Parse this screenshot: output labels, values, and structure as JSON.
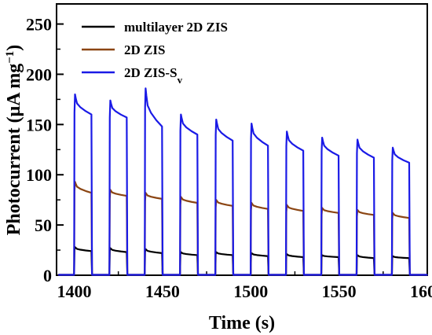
{
  "chart_data": {
    "type": "line",
    "xlabel": "Time (s)",
    "ylabel": {
      "main": "Photocurrent (μA mg",
      "sup": "−1",
      "close": ")"
    },
    "xlim": [
      1390,
      1600
    ],
    "ylim": [
      0,
      270
    ],
    "x_ticks": [
      1400,
      1450,
      1500,
      1550,
      1600
    ],
    "y_ticks": [
      0,
      50,
      100,
      150,
      200,
      250
    ],
    "x_minor_ticks": [
      1425,
      1475,
      1525,
      1575
    ],
    "y_minor_ticks": [
      25,
      75,
      125,
      175,
      225
    ],
    "grid": false,
    "legend_position": "top-left",
    "light_on": {
      "start": [
        1400,
        1420,
        1440,
        1460,
        1480,
        1500,
        1520,
        1540,
        1560,
        1580
      ],
      "duration": 10
    },
    "series": [
      {
        "name": "multilayer 2D ZIS",
        "name_sub": "",
        "color": "#000000",
        "peak": [
          28,
          27,
          26,
          23,
          23,
          22,
          21,
          20,
          20,
          19
        ],
        "plateau": [
          24,
          23,
          22,
          20,
          20,
          19,
          18,
          18,
          17,
          17
        ]
      },
      {
        "name": "2D ZIS",
        "name_sub": "",
        "color": "#8b4513",
        "peak": [
          93,
          85,
          82,
          78,
          75,
          72,
          70,
          67,
          65,
          62
        ],
        "plateau": [
          82,
          79,
          76,
          72,
          69,
          66,
          64,
          62,
          60,
          57
        ]
      },
      {
        "name": "2D ZIS-S",
        "name_sub": "v",
        "color": "#1a1ae6",
        "peak": [
          180,
          174,
          186,
          160,
          155,
          151,
          143,
          137,
          135,
          127
        ],
        "plateau": [
          160,
          157,
          148,
          140,
          134,
          129,
          124,
          119,
          117,
          112
        ]
      }
    ]
  }
}
